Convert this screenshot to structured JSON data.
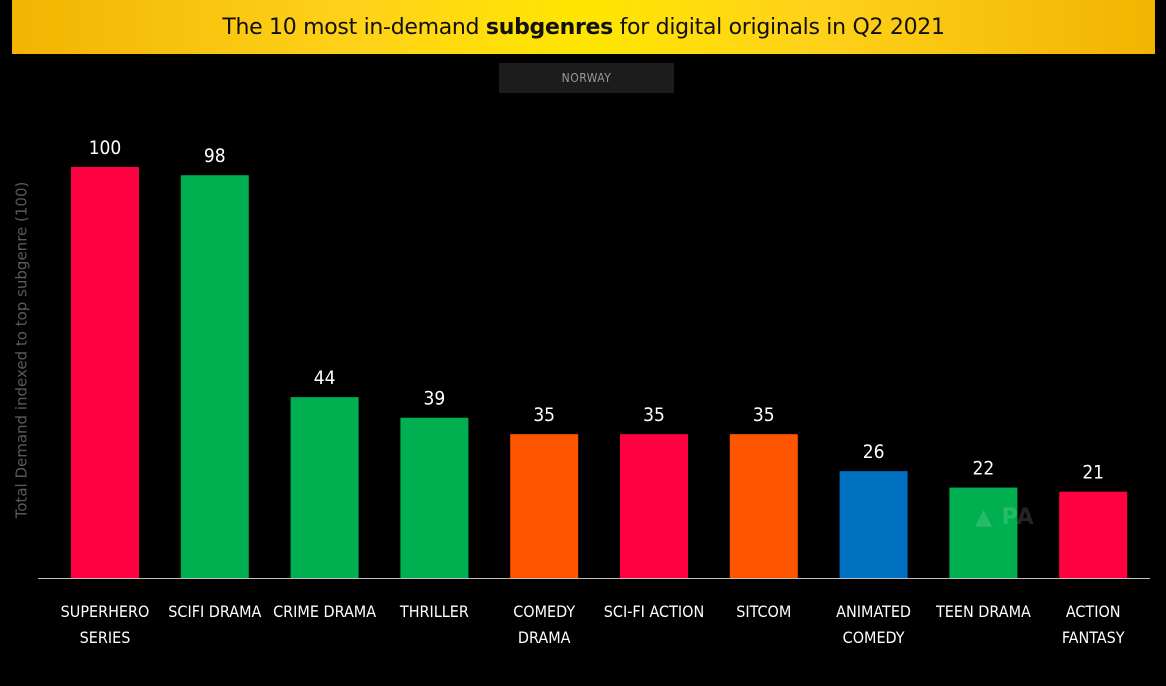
{
  "title": {
    "pre": "The 10 most in-demand ",
    "bold": "subgenres",
    "post": " for digital originals in Q2 2021"
  },
  "region": "NORWAY",
  "chart_data": {
    "type": "bar",
    "title": "The 10 most in-demand subgenres for digital originals in Q2 2021",
    "subtitle": "NORWAY",
    "ylabel": "Total Demand indexed to top subgenre (100)",
    "xlabel": "",
    "ylim": [
      0,
      100
    ],
    "grid": false,
    "legend": "none",
    "categories": [
      [
        "SUPERHERO",
        "SERIES"
      ],
      [
        "SCIFI DRAMA"
      ],
      [
        "CRIME DRAMA"
      ],
      [
        "THRILLER"
      ],
      [
        "COMEDY",
        "DRAMA"
      ],
      [
        "SCI-FI ACTION"
      ],
      [
        "SITCOM"
      ],
      [
        "ANIMATED",
        "COMEDY"
      ],
      [
        "TEEN DRAMA"
      ],
      [
        "ACTION",
        "FANTASY"
      ]
    ],
    "values": [
      100,
      98,
      44,
      39,
      35,
      35,
      35,
      26,
      22,
      21
    ],
    "colors": [
      "#ff0040",
      "#00b050",
      "#00b050",
      "#00b050",
      "#ff5500",
      "#ff0040",
      "#ff5500",
      "#0070c0",
      "#00b050",
      "#ff0040"
    ]
  },
  "style": {
    "background": "#000000",
    "axis_color": "#bfbfbf",
    "label_color": "#ffffff"
  }
}
